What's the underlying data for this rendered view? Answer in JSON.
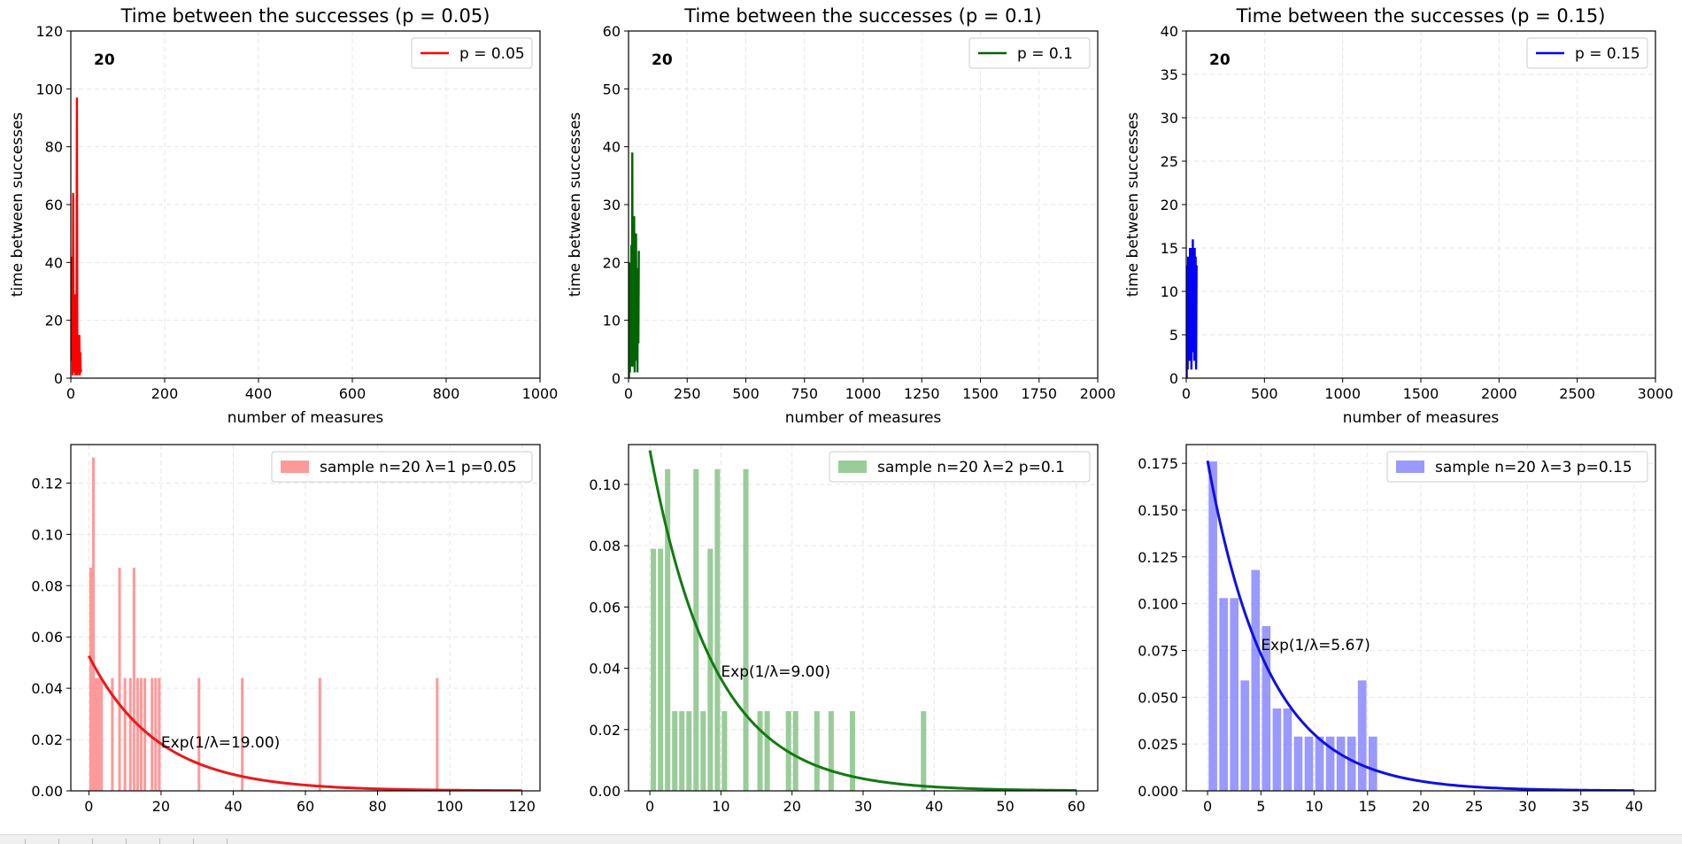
{
  "figure": {
    "status_segments": 7
  },
  "chart_data": [
    {
      "type": "line",
      "title": "Time between the successes (p = 0.05)",
      "xlabel": "number of measures",
      "ylabel": "time between successes",
      "xlim": [
        0,
        1000
      ],
      "ylim": [
        0,
        120
      ],
      "xticks": [
        0,
        200,
        400,
        600,
        800,
        1000
      ],
      "xtick_labels": [
        "0",
        "200",
        "400",
        "600",
        "800",
        "1000"
      ],
      "yticks": [
        0,
        20,
        40,
        60,
        80,
        100,
        120
      ],
      "ytick_labels": [
        "0",
        "20",
        "40",
        "60",
        "80",
        "100",
        "120"
      ],
      "grid": true,
      "legend_position": "top-right",
      "annotation": "20",
      "series": [
        {
          "name": "p = 0.05",
          "color": "#ff0000",
          "x": [
            1,
            2,
            3,
            4,
            5,
            6,
            7,
            8,
            9,
            10,
            11,
            12,
            13,
            14,
            15,
            16,
            17,
            18,
            19,
            20,
            21,
            22
          ],
          "y": [
            42,
            6,
            30,
            1,
            64,
            13,
            2,
            29,
            8,
            1,
            19,
            3,
            97,
            1,
            13,
            2,
            4,
            15,
            1,
            9,
            2,
            3
          ]
        }
      ]
    },
    {
      "type": "line",
      "title": "Time between the successes (p = 0.1)",
      "xlabel": "number of measures",
      "ylabel": "time between successes",
      "xlim": [
        0,
        2000
      ],
      "ylim": [
        0,
        60
      ],
      "xticks": [
        0,
        250,
        500,
        750,
        1000,
        1250,
        1500,
        1750,
        2000
      ],
      "xtick_labels": [
        "0",
        "250",
        "500",
        "750",
        "1000",
        "1250",
        "1500",
        "1750",
        "2000"
      ],
      "yticks": [
        0,
        10,
        20,
        30,
        40,
        50,
        60
      ],
      "ytick_labels": [
        "0",
        "10",
        "20",
        "30",
        "40",
        "50",
        "60"
      ],
      "grid": true,
      "legend_position": "top-right",
      "annotation": "20",
      "series": [
        {
          "name": "p = 0.1",
          "color": "#006400",
          "x": [
            2,
            4,
            6,
            8,
            10,
            12,
            14,
            16,
            18,
            20,
            22,
            24,
            26,
            28,
            30,
            32,
            34,
            36,
            38,
            40,
            42,
            44
          ],
          "y": [
            0,
            20,
            1,
            13,
            6,
            23,
            2,
            39,
            5,
            13,
            2,
            28,
            1,
            20,
            9,
            25,
            3,
            16,
            1,
            19,
            6,
            22
          ]
        }
      ]
    },
    {
      "type": "line",
      "title": "Time between the successes (p = 0.15)",
      "xlabel": "number of measures",
      "ylabel": "time between successes",
      "xlim": [
        0,
        3000
      ],
      "ylim": [
        0,
        40
      ],
      "xticks": [
        0,
        500,
        1000,
        1500,
        2000,
        2500,
        3000
      ],
      "xtick_labels": [
        "0",
        "500",
        "1000",
        "1500",
        "2000",
        "2500",
        "3000"
      ],
      "yticks": [
        0,
        5,
        10,
        15,
        20,
        25,
        30,
        35,
        40
      ],
      "ytick_labels": [
        "0",
        "5",
        "10",
        "15",
        "20",
        "25",
        "30",
        "35",
        "40"
      ],
      "grid": true,
      "legend_position": "top-right",
      "annotation": "20",
      "series": [
        {
          "name": "p = 0.15",
          "color": "#0000ff",
          "x": [
            3,
            6,
            9,
            12,
            15,
            18,
            21,
            24,
            27,
            30,
            33,
            36,
            39,
            42,
            45,
            48,
            51,
            54,
            57,
            60,
            63,
            66
          ],
          "y": [
            0,
            13,
            1,
            14,
            4,
            12,
            2,
            15,
            6,
            14,
            1,
            15,
            3,
            16,
            5,
            14,
            2,
            15,
            4,
            14,
            1,
            13
          ]
        }
      ]
    },
    {
      "type": "bar",
      "xlabel": "",
      "ylabel": "",
      "xlim": [
        -5,
        125
      ],
      "ylim": [
        0,
        0.135
      ],
      "xticks": [
        0,
        20,
        40,
        60,
        80,
        100,
        120
      ],
      "xtick_labels": [
        "0",
        "20",
        "40",
        "60",
        "80",
        "100",
        "120"
      ],
      "yticks": [
        0,
        0.02,
        0.04,
        0.06,
        0.08,
        0.1,
        0.12
      ],
      "ytick_labels": [
        "0.00",
        "0.02",
        "0.04",
        "0.06",
        "0.08",
        "0.10",
        "0.12"
      ],
      "grid": true,
      "legend_position": "top-right",
      "bar_color": "#ff7f7f",
      "bar_width": 0.75,
      "bars": [
        {
          "x": 0.5,
          "h": 0.087
        },
        {
          "x": 1.25,
          "h": 0.13
        },
        {
          "x": 2.0,
          "h": 0.044
        },
        {
          "x": 2.75,
          "h": 0.044
        },
        {
          "x": 3.5,
          "h": 0.044
        },
        {
          "x": 6.5,
          "h": 0.044
        },
        {
          "x": 8.5,
          "h": 0.087
        },
        {
          "x": 10.0,
          "h": 0.044
        },
        {
          "x": 12.5,
          "h": 0.087
        },
        {
          "x": 11.5,
          "h": 0.044
        },
        {
          "x": 13.5,
          "h": 0.044
        },
        {
          "x": 14.5,
          "h": 0.044
        },
        {
          "x": 15.5,
          "h": 0.044
        },
        {
          "x": 17.5,
          "h": 0.044
        },
        {
          "x": 18.5,
          "h": 0.044
        },
        {
          "x": 19.5,
          "h": 0.044
        },
        {
          "x": 30.5,
          "h": 0.044
        },
        {
          "x": 42.5,
          "h": 0.044
        },
        {
          "x": 64.0,
          "h": 0.044
        },
        {
          "x": 96.5,
          "h": 0.044
        }
      ],
      "sample_label": "sample n=20 λ=1 p=0.05",
      "curve": {
        "name": "Exp(1/λ=19.00)",
        "color": "#e8191d",
        "scale": 19.0,
        "x_start": 0,
        "x_end": 120
      },
      "curve_label_at": [
        20,
        0.019
      ],
      "series": [
        {
          "name": "sample n=20 λ=1 p=0.05"
        },
        {
          "name": "Exp(1/λ=19.00)"
        }
      ]
    },
    {
      "type": "bar",
      "xlabel": "",
      "ylabel": "",
      "xlim": [
        -3,
        63
      ],
      "ylim": [
        0,
        0.113
      ],
      "xticks": [
        0,
        10,
        20,
        30,
        40,
        50,
        60
      ],
      "xtick_labels": [
        "0",
        "10",
        "20",
        "30",
        "40",
        "50",
        "60"
      ],
      "yticks": [
        0,
        0.02,
        0.04,
        0.06,
        0.08,
        0.1
      ],
      "ytick_labels": [
        "0.00",
        "0.02",
        "0.04",
        "0.06",
        "0.08",
        "0.10"
      ],
      "grid": true,
      "legend_position": "top-right",
      "bar_color": "#7fbf7f",
      "bar_width": 0.75,
      "bars": [
        {
          "x": 0.5,
          "h": 0.079
        },
        {
          "x": 1.5,
          "h": 0.079
        },
        {
          "x": 2.5,
          "h": 0.105
        },
        {
          "x": 3.5,
          "h": 0.026
        },
        {
          "x": 4.5,
          "h": 0.026
        },
        {
          "x": 5.5,
          "h": 0.026
        },
        {
          "x": 6.5,
          "h": 0.105
        },
        {
          "x": 7.5,
          "h": 0.026
        },
        {
          "x": 8.5,
          "h": 0.079
        },
        {
          "x": 9.5,
          "h": 0.105
        },
        {
          "x": 10.5,
          "h": 0.026
        },
        {
          "x": 13.5,
          "h": 0.105
        },
        {
          "x": 15.5,
          "h": 0.026
        },
        {
          "x": 16.5,
          "h": 0.026
        },
        {
          "x": 19.5,
          "h": 0.026
        },
        {
          "x": 20.5,
          "h": 0.026
        },
        {
          "x": 23.5,
          "h": 0.026
        },
        {
          "x": 25.5,
          "h": 0.026
        },
        {
          "x": 28.5,
          "h": 0.026
        },
        {
          "x": 38.5,
          "h": 0.026
        }
      ],
      "sample_label": "sample n=20 λ=2 p=0.1",
      "curve": {
        "name": "Exp(1/λ=9.00)",
        "color": "#127a12",
        "scale": 9.0,
        "x_start": 0,
        "x_end": 60
      },
      "curve_label_at": [
        10,
        0.039
      ],
      "series": [
        {
          "name": "sample n=20 λ=2 p=0.1"
        },
        {
          "name": "Exp(1/λ=9.00)"
        }
      ]
    },
    {
      "type": "bar",
      "xlabel": "",
      "ylabel": "",
      "xlim": [
        -2,
        42
      ],
      "ylim": [
        0,
        0.185
      ],
      "xticks": [
        0,
        5,
        10,
        15,
        20,
        25,
        30,
        35,
        40
      ],
      "xtick_labels": [
        "0",
        "5",
        "10",
        "15",
        "20",
        "25",
        "30",
        "35",
        "40"
      ],
      "yticks": [
        0,
        0.025,
        0.05,
        0.075,
        0.1,
        0.125,
        0.15,
        0.175
      ],
      "ytick_labels": [
        "0.000",
        "0.025",
        "0.050",
        "0.075",
        "0.100",
        "0.125",
        "0.150",
        "0.175"
      ],
      "grid": true,
      "legend_position": "top-right",
      "bar_color": "#7f7fff",
      "bar_width": 0.8,
      "bars": [
        {
          "x": 0.5,
          "h": 0.176
        },
        {
          "x": 1.5,
          "h": 0.103
        },
        {
          "x": 2.5,
          "h": 0.103
        },
        {
          "x": 3.5,
          "h": 0.059
        },
        {
          "x": 4.5,
          "h": 0.118
        },
        {
          "x": 5.5,
          "h": 0.088
        },
        {
          "x": 6.5,
          "h": 0.044
        },
        {
          "x": 7.5,
          "h": 0.044
        },
        {
          "x": 8.5,
          "h": 0.029
        },
        {
          "x": 9.5,
          "h": 0.029
        },
        {
          "x": 10.5,
          "h": 0.029
        },
        {
          "x": 11.5,
          "h": 0.029
        },
        {
          "x": 12.5,
          "h": 0.029
        },
        {
          "x": 13.5,
          "h": 0.029
        },
        {
          "x": 14.5,
          "h": 0.059
        },
        {
          "x": 15.5,
          "h": 0.029
        }
      ],
      "sample_label": "sample n=20 λ=3 p=0.15",
      "curve": {
        "name": "Exp(1/λ=5.67)",
        "color": "#0f0fe6",
        "scale": 5.67,
        "x_start": 0,
        "x_end": 40
      },
      "curve_label_at": [
        5,
        0.078
      ],
      "series": [
        {
          "name": "sample n=20 λ=3 p=0.15"
        },
        {
          "name": "Exp(1/λ=5.67)"
        }
      ]
    }
  ]
}
